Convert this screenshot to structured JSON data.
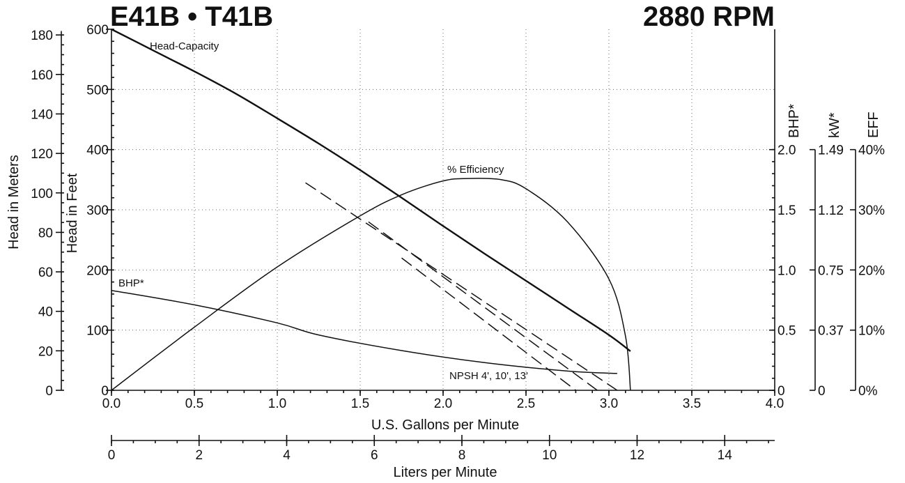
{
  "header": {
    "model": "E41B • T41B",
    "rpm": "2880 RPM"
  },
  "chart_data": {
    "type": "line",
    "grid": true,
    "xlabel": "U.S. Gallons per Minute",
    "xlim": [
      0,
      4
    ],
    "x_ticks": [
      "0.0",
      "0.5",
      "1.0",
      "1.5",
      "2.0",
      "2.5",
      "3.0",
      "3.5",
      "4.0"
    ],
    "x2label": "Liters per Minute",
    "x2_ticks": [
      "0",
      "2",
      "4",
      "6",
      "8",
      "10",
      "12",
      "14"
    ],
    "ylabel_feet": "Head in Feet",
    "ylim_feet": [
      0,
      600
    ],
    "yfeet_ticks": [
      "0",
      "100",
      "200",
      "300",
      "400",
      "500",
      "600"
    ],
    "ylabel_meters": "Head in Meters",
    "ymeters_ticks": [
      "0",
      "20",
      "40",
      "60",
      "80",
      "100",
      "120",
      "140",
      "160",
      "180"
    ],
    "bhp_label": "BHP*",
    "bhp_ticks": [
      "0",
      "0.5",
      "1.0",
      "1.5",
      "2.0"
    ],
    "kw_label": "kW*",
    "kw_ticks": [
      "0",
      "0.37",
      "0.75",
      "1.12",
      "1.49"
    ],
    "eff_label": "EFF",
    "eff_ticks": [
      "0%",
      "10%",
      "20%",
      "30%",
      "40%"
    ],
    "series": [
      {
        "name": "Head-Capacity",
        "axis": "feet",
        "style": "solid",
        "points": [
          [
            0,
            600
          ],
          [
            0.25,
            565
          ],
          [
            0.5,
            530
          ],
          [
            0.75,
            493
          ],
          [
            1.0,
            452
          ],
          [
            1.25,
            410
          ],
          [
            1.5,
            366
          ],
          [
            1.75,
            320
          ],
          [
            2.0,
            273
          ],
          [
            2.25,
            227
          ],
          [
            2.5,
            182
          ],
          [
            2.75,
            137
          ],
          [
            3.0,
            92
          ],
          [
            3.13,
            65
          ]
        ]
      },
      {
        "name": "% Efficiency",
        "axis": "eff",
        "style": "solid",
        "points": [
          [
            0,
            0
          ],
          [
            0.5,
            10.5
          ],
          [
            1.0,
            20.5
          ],
          [
            1.5,
            29
          ],
          [
            1.75,
            32.5
          ],
          [
            2.0,
            34.8
          ],
          [
            2.15,
            35.2
          ],
          [
            2.35,
            35
          ],
          [
            2.5,
            33.5
          ],
          [
            2.75,
            28
          ],
          [
            3.0,
            18.5
          ],
          [
            3.1,
            9
          ],
          [
            3.13,
            0
          ]
        ]
      },
      {
        "name": "BHP*",
        "axis": "bhp",
        "style": "solid",
        "points": [
          [
            0,
            0.83
          ],
          [
            0.5,
            0.71
          ],
          [
            1.0,
            0.56
          ],
          [
            1.25,
            0.46
          ],
          [
            1.75,
            0.33
          ],
          [
            2.25,
            0.23
          ],
          [
            2.75,
            0.16
          ],
          [
            3.05,
            0.14
          ]
        ]
      },
      {
        "name": "NPSH 4'",
        "axis": "feet",
        "style": "dashed",
        "points": [
          [
            1.17,
            345
          ],
          [
            3.05,
            0
          ]
        ]
      },
      {
        "name": "NPSH 10'",
        "axis": "feet",
        "style": "dashed",
        "points": [
          [
            1.55,
            280
          ],
          [
            2.93,
            0
          ]
        ]
      },
      {
        "name": "NPSH 13'",
        "axis": "feet",
        "style": "dashed",
        "points": [
          [
            1.75,
            220
          ],
          [
            2.8,
            0
          ]
        ]
      }
    ],
    "annotations": {
      "head_capacity": "Head-Capacity",
      "efficiency": "% Efficiency",
      "bhp": "BHP*",
      "npsh": "NPSH 4', 10', 13'"
    }
  }
}
